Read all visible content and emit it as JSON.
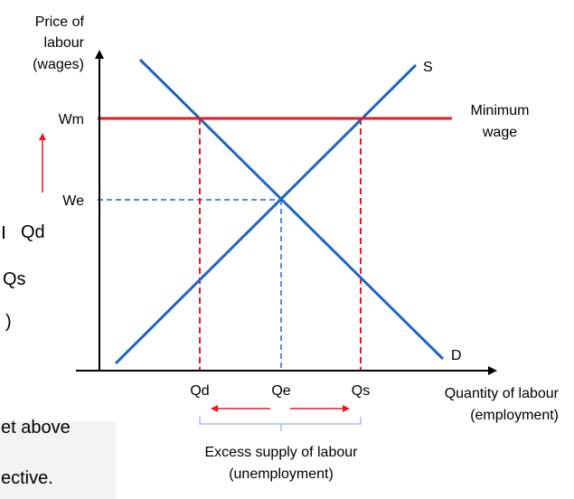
{
  "diagram": {
    "y_axis_label": [
      "Price of",
      "labour",
      "(wages)"
    ],
    "x_axis_label": [
      "Quantity of labour",
      "(employment)"
    ],
    "supply_label": "S",
    "demand_label": "D",
    "min_wage_label": [
      "Minimum",
      "wage"
    ],
    "price_ticks": {
      "wm": "Wm",
      "we": "We"
    },
    "quantity_ticks": {
      "qd": "Qd",
      "qe": "Qe",
      "qs": "Qs"
    },
    "excess_label": [
      "Excess supply of labour",
      "(unemployment)"
    ],
    "colors": {
      "curve": "#1f66c2",
      "min_wage": "#e5191f",
      "axis": "#000000",
      "equilibrium_guide": "#1f66c2",
      "arrow": "#e5191f"
    }
  },
  "left_text": {
    "line1": "Qd",
    "line2": "Qs",
    "line3": ")"
  },
  "left_box": {
    "line1": "et above",
    "line2": "ective."
  }
}
